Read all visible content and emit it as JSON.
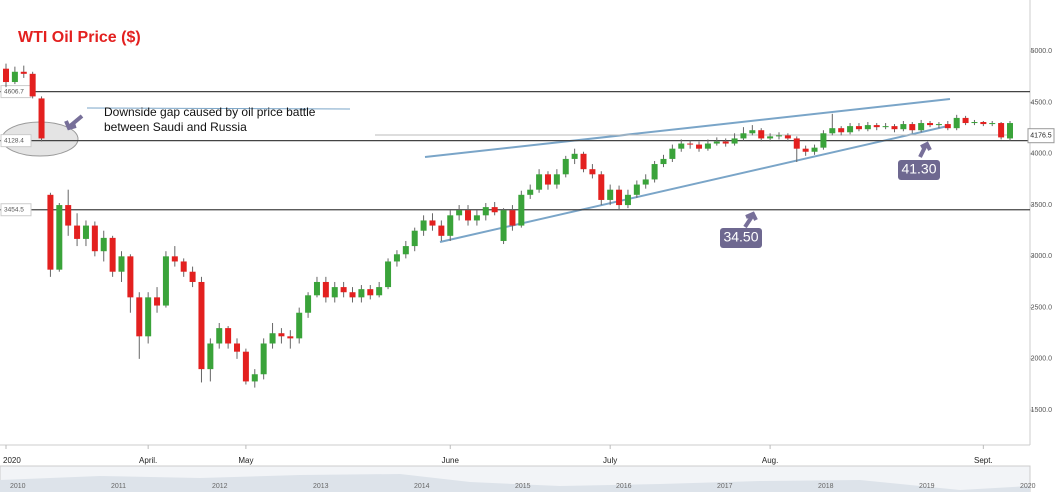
{
  "chart_data": {
    "type": "candlestick",
    "title": "WTI Oil Price ($)",
    "annotation": "Downside gap caused by oil price battle between Saudi and Russia",
    "callouts": [
      "41.30",
      "34.50"
    ],
    "last_price": 4176.5,
    "levels": [
      4606.7,
      4128.4,
      3454.5
    ],
    "ylim": [
      1160,
      5500
    ],
    "yticks": [
      {
        "value": 1500,
        "label": "1500.0"
      },
      {
        "value": 2000,
        "label": "2000.0"
      },
      {
        "value": 2500,
        "label": "2500.0"
      },
      {
        "value": 3000,
        "label": "3000.0"
      },
      {
        "value": 3500,
        "label": "3500.0"
      },
      {
        "value": 4000,
        "label": "4000.0"
      },
      {
        "value": 4500,
        "label": "4500.0"
      },
      {
        "value": 5000,
        "label": "5000.0"
      }
    ],
    "xticks": [
      {
        "value": 0,
        "label": "2020"
      },
      {
        "value": 16,
        "label": "April."
      },
      {
        "value": 27,
        "label": "May"
      },
      {
        "value": 50,
        "label": "June"
      },
      {
        "value": 68,
        "label": "July"
      },
      {
        "value": 86,
        "label": "Aug."
      },
      {
        "value": 110,
        "label": "Sept."
      }
    ],
    "navigator_years": [
      "2010",
      "2011",
      "2012",
      "2013",
      "2014",
      "2015",
      "2016",
      "2017",
      "2018",
      "2019",
      "2020"
    ],
    "up_color": "#3aa33a",
    "down_color": "#e3201f",
    "candles": [
      [
        4830,
        4880,
        4650,
        4700
      ],
      [
        4700,
        4850,
        4680,
        4800
      ],
      [
        4800,
        4860,
        4740,
        4780
      ],
      [
        4780,
        4800,
        4540,
        4560
      ],
      [
        4540,
        4560,
        4120,
        4150
      ],
      [
        3600,
        3620,
        2800,
        2870
      ],
      [
        2870,
        3520,
        2850,
        3500
      ],
      [
        3500,
        3650,
        3200,
        3300
      ],
      [
        3300,
        3420,
        3100,
        3170
      ],
      [
        3170,
        3350,
        3100,
        3300
      ],
      [
        3300,
        3340,
        3000,
        3050
      ],
      [
        3050,
        3250,
        2950,
        3180
      ],
      [
        3180,
        3200,
        2800,
        2850
      ],
      [
        2850,
        3050,
        2750,
        3000
      ],
      [
        3000,
        3020,
        2450,
        2600
      ],
      [
        2600,
        2650,
        2000,
        2220
      ],
      [
        2220,
        2650,
        2150,
        2600
      ],
      [
        2600,
        2700,
        2450,
        2520
      ],
      [
        2520,
        3050,
        2500,
        3000
      ],
      [
        3000,
        3100,
        2900,
        2950
      ],
      [
        2950,
        2980,
        2800,
        2850
      ],
      [
        2850,
        2900,
        2700,
        2750
      ],
      [
        2750,
        2800,
        1770,
        1900
      ],
      [
        1900,
        2200,
        1780,
        2150
      ],
      [
        2150,
        2350,
        2100,
        2300
      ],
      [
        2300,
        2320,
        2100,
        2150
      ],
      [
        2150,
        2200,
        2000,
        2070
      ],
      [
        2070,
        2100,
        1750,
        1780
      ],
      [
        1780,
        1900,
        1720,
        1850
      ],
      [
        1850,
        2200,
        1800,
        2150
      ],
      [
        2150,
        2350,
        2100,
        2250
      ],
      [
        2250,
        2300,
        2150,
        2220
      ],
      [
        2220,
        2280,
        2100,
        2200
      ],
      [
        2200,
        2500,
        2150,
        2450
      ],
      [
        2450,
        2650,
        2400,
        2620
      ],
      [
        2620,
        2800,
        2600,
        2750
      ],
      [
        2750,
        2800,
        2550,
        2600
      ],
      [
        2600,
        2750,
        2550,
        2700
      ],
      [
        2700,
        2750,
        2600,
        2650
      ],
      [
        2650,
        2700,
        2550,
        2600
      ],
      [
        2600,
        2720,
        2550,
        2680
      ],
      [
        2680,
        2720,
        2580,
        2620
      ],
      [
        2620,
        2750,
        2600,
        2700
      ],
      [
        2700,
        2980,
        2680,
        2950
      ],
      [
        2950,
        3060,
        2900,
        3020
      ],
      [
        3020,
        3150,
        2980,
        3100
      ],
      [
        3100,
        3280,
        3050,
        3250
      ],
      [
        3250,
        3400,
        3200,
        3350
      ],
      [
        3350,
        3420,
        3250,
        3300
      ],
      [
        3300,
        3350,
        3150,
        3200
      ],
      [
        3200,
        3450,
        3150,
        3400
      ],
      [
        3400,
        3500,
        3350,
        3450
      ],
      [
        3450,
        3500,
        3300,
        3350
      ],
      [
        3350,
        3450,
        3300,
        3400
      ],
      [
        3400,
        3520,
        3350,
        3480
      ],
      [
        3480,
        3530,
        3400,
        3430
      ],
      [
        3150,
        3470,
        3120,
        3450
      ],
      [
        3450,
        3500,
        3250,
        3300
      ],
      [
        3300,
        3640,
        3280,
        3600
      ],
      [
        3600,
        3700,
        3560,
        3650
      ],
      [
        3650,
        3850,
        3620,
        3800
      ],
      [
        3800,
        3830,
        3650,
        3700
      ],
      [
        3700,
        3850,
        3660,
        3800
      ],
      [
        3800,
        3980,
        3770,
        3950
      ],
      [
        3950,
        4050,
        3900,
        4000
      ],
      [
        4000,
        4020,
        3820,
        3850
      ],
      [
        3850,
        3900,
        3760,
        3800
      ],
      [
        3800,
        3830,
        3500,
        3550
      ],
      [
        3550,
        3700,
        3500,
        3650
      ],
      [
        3650,
        3690,
        3450,
        3500
      ],
      [
        3500,
        3650,
        3470,
        3600
      ],
      [
        3600,
        3740,
        3570,
        3700
      ],
      [
        3700,
        3800,
        3660,
        3750
      ],
      [
        3750,
        3930,
        3720,
        3900
      ],
      [
        3900,
        3990,
        3870,
        3950
      ],
      [
        3950,
        4090,
        3920,
        4050
      ],
      [
        4050,
        4140,
        4020,
        4100
      ],
      [
        4100,
        4130,
        4050,
        4090
      ],
      [
        4090,
        4120,
        4020,
        4050
      ],
      [
        4050,
        4140,
        4030,
        4100
      ],
      [
        4100,
        4160,
        4080,
        4120
      ],
      [
        4120,
        4150,
        4070,
        4100
      ],
      [
        4100,
        4200,
        4080,
        4150
      ],
      [
        4150,
        4260,
        4130,
        4200
      ],
      [
        4200,
        4280,
        4180,
        4230
      ],
      [
        4230,
        4250,
        4120,
        4150
      ],
      [
        4150,
        4200,
        4120,
        4170
      ],
      [
        4170,
        4210,
        4140,
        4180
      ],
      [
        4180,
        4200,
        4120,
        4150
      ],
      [
        4150,
        4170,
        3920,
        4050
      ],
      [
        4050,
        4080,
        3980,
        4020
      ],
      [
        4020,
        4090,
        3990,
        4060
      ],
      [
        4060,
        4230,
        4040,
        4200
      ],
      [
        4200,
        4390,
        4180,
        4250
      ],
      [
        4250,
        4270,
        4180,
        4210
      ],
      [
        4210,
        4300,
        4190,
        4270
      ],
      [
        4270,
        4300,
        4220,
        4240
      ],
      [
        4240,
        4310,
        4220,
        4280
      ],
      [
        4280,
        4300,
        4230,
        4260
      ],
      [
        4260,
        4300,
        4240,
        4270
      ],
      [
        4270,
        4290,
        4210,
        4240
      ],
      [
        4240,
        4320,
        4220,
        4290
      ],
      [
        4290,
        4310,
        4200,
        4230
      ],
      [
        4230,
        4330,
        4210,
        4300
      ],
      [
        4300,
        4320,
        4260,
        4280
      ],
      [
        4280,
        4310,
        4250,
        4290
      ],
      [
        4290,
        4320,
        4230,
        4250
      ],
      [
        4250,
        4380,
        4230,
        4350
      ],
      [
        4350,
        4370,
        4280,
        4300
      ],
      [
        4300,
        4330,
        4280,
        4310
      ],
      [
        4310,
        4320,
        4270,
        4290
      ],
      [
        4290,
        4320,
        4270,
        4300
      ],
      [
        4300,
        4310,
        4140,
        4160
      ],
      [
        4150,
        4320,
        4130,
        4300
      ]
    ]
  }
}
